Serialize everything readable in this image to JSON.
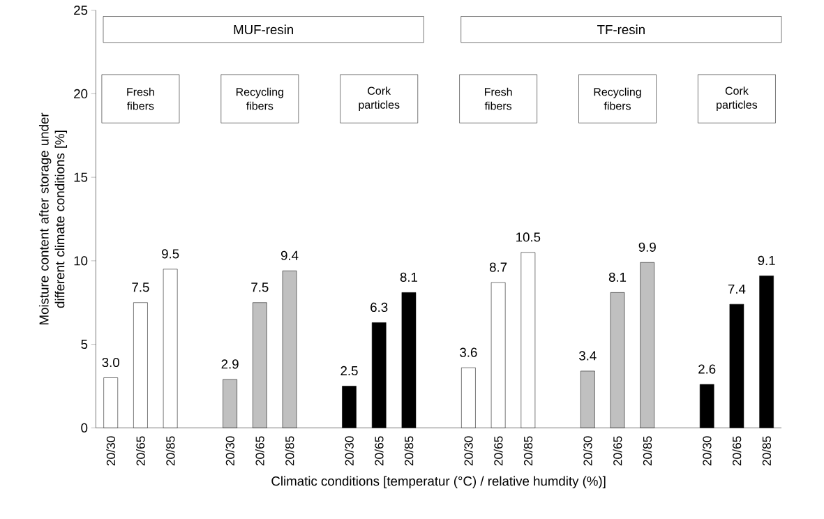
{
  "chart_data": {
    "type": "bar",
    "xlabel": "Climatic conditions [temperatur (°C) / relative humdity (%)]",
    "ylabel": "Moisture content after storage under different climate conditions [%]",
    "categories": [
      "20/30",
      "20/65",
      "20/85",
      null,
      "20/30",
      "20/65",
      "20/85",
      null,
      "20/30",
      "20/65",
      "20/85",
      null,
      "20/30",
      "20/65",
      "20/85",
      null,
      "20/30",
      "20/65",
      "20/85",
      null,
      "20/30",
      "20/65",
      "20/85"
    ],
    "values": [
      3.0,
      7.5,
      9.5,
      null,
      2.9,
      7.5,
      9.4,
      null,
      2.5,
      6.3,
      8.1,
      null,
      3.6,
      8.7,
      10.5,
      null,
      3.4,
      8.1,
      9.9,
      null,
      2.6,
      7.4,
      9.1
    ],
    "colors": [
      "#ffffff",
      "#ffffff",
      "#ffffff",
      null,
      "#c0c0c0",
      "#c0c0c0",
      "#c0c0c0",
      null,
      "#000000",
      "#000000",
      "#000000",
      null,
      "#ffffff",
      "#ffffff",
      "#ffffff",
      null,
      "#c0c0c0",
      "#c0c0c0",
      "#c0c0c0",
      null,
      "#000000",
      "#000000",
      "#000000"
    ],
    "value_labels": [
      "3.0",
      "7.5",
      "9.5",
      null,
      "2.9",
      "7.5",
      "9.4",
      null,
      "2.5",
      "6.3",
      "8.1",
      null,
      "3.6",
      "8.7",
      "10.5",
      null,
      "3.4",
      "8.1",
      "9.9",
      null,
      "2.6",
      "7.4",
      "9.1"
    ],
    "ylim": [
      0,
      25
    ],
    "yticks": [
      0,
      5,
      10,
      15,
      20,
      25
    ],
    "grid": false,
    "annotations": [
      "MUF-resin",
      "TF-resin",
      "Fresh fibers",
      "Recycling fibers",
      "Cork particles",
      "Fresh fibers",
      "Recycling fibers",
      "Cork particles"
    ]
  }
}
